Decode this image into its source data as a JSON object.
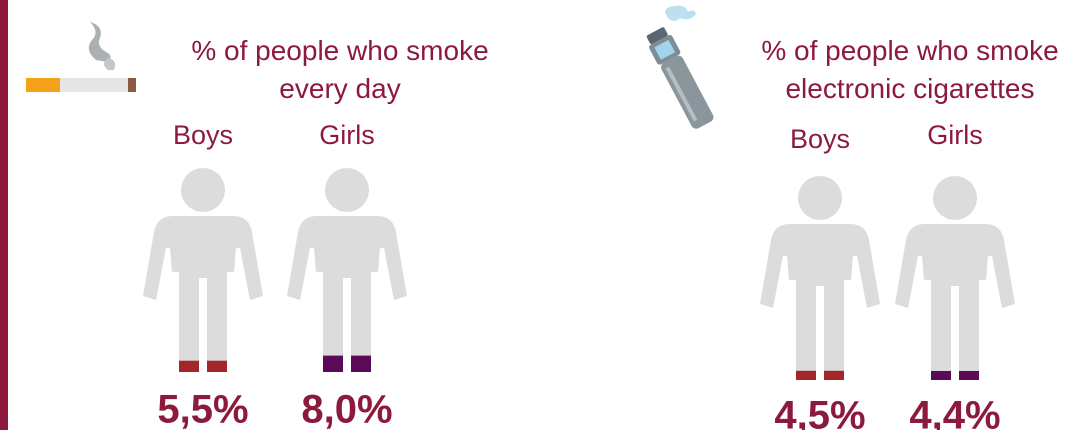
{
  "chart_data": [
    {
      "type": "pictograph",
      "title": "% of people who smoke every day",
      "categories": [
        "Boys",
        "Girls"
      ],
      "values": [
        5.5,
        8.0
      ],
      "value_labels": [
        "5,5%",
        "8,0%"
      ],
      "colors": [
        "#a3262a",
        "#5b0b55"
      ]
    },
    {
      "type": "pictograph",
      "title": "% of people who smoke electronic cigarettes",
      "categories": [
        "Boys",
        "Girls"
      ],
      "values": [
        4.5,
        4.4
      ],
      "value_labels": [
        "4,5%",
        "4,4%"
      ],
      "colors": [
        "#a3262a",
        "#5b0b55"
      ]
    }
  ]
}
